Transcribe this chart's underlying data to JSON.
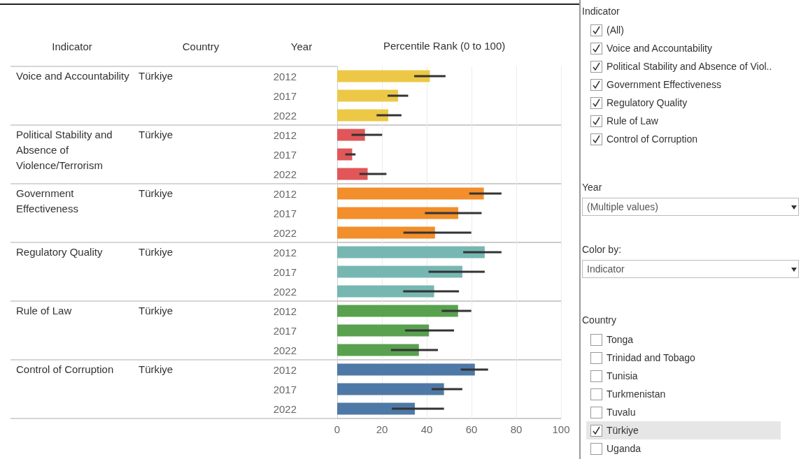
{
  "chart_data": [
    {
      "type": "bar",
      "orientation": "horizontal",
      "xlabel": "Percentile Rank (0 to 100)",
      "categories": [
        "2012",
        "2017",
        "2022",
        "2012",
        "2017",
        "2022",
        "2012",
        "2017",
        "2022",
        "2012",
        "2017",
        "2022",
        "2012",
        "2017",
        "2022",
        "2012",
        "2017",
        "2022"
      ],
      "values": [
        41.4,
        27.2,
        22.8,
        12.4,
        6.7,
        13.6,
        65.5,
        54.1,
        43.7,
        65.9,
        55.9,
        43.3,
        54,
        41,
        36.5,
        61.5,
        47.7,
        34.7
      ],
      "errors": [
        [
          34.4,
          48.4
        ],
        [
          22.5,
          31.7
        ],
        [
          17.6,
          28.7
        ],
        [
          6.4,
          20.1
        ],
        [
          3.6,
          8.2
        ],
        [
          9.9,
          22
        ],
        [
          59,
          73.4
        ],
        [
          39.2,
          64.5
        ],
        [
          29.6,
          59.9
        ],
        [
          56.3,
          73.4
        ],
        [
          40.8,
          65.9
        ],
        [
          29.5,
          54.4
        ],
        [
          46.7,
          59.9
        ],
        [
          30.3,
          52.2
        ],
        [
          24,
          45
        ],
        [
          55.2,
          67.4
        ],
        [
          42.2,
          55.9
        ],
        [
          24.4,
          47.7
        ]
      ],
      "colors": [
        "#ecc846",
        "#ecc846",
        "#ecc846",
        "#e15759",
        "#e15759",
        "#e15759",
        "#f28e2b",
        "#f28e2b",
        "#f28e2b",
        "#76b7b2",
        "#76b7b2",
        "#76b7b2",
        "#59a14f",
        "#59a14f",
        "#59a14f",
        "#4e79a7",
        "#4e79a7",
        "#4e79a7"
      ],
      "xlim": [
        0,
        100
      ],
      "xticks": [
        0,
        20,
        40,
        60,
        80,
        100
      ],
      "grid": true,
      "annotations": [
        "Indicator",
        "Country",
        "Year",
        "Voice and Accountability",
        "Political Stability and Absence of Violence/Terrorism",
        "Government Effectiveness",
        "Regulatory Quality",
        "Rule of Law",
        "Control of Corruption",
        "Türkiye",
        "Türkiye",
        "Türkiye",
        "Türkiye",
        "Türkiye",
        "Türkiye"
      ]
    },
    {
      "type": "other",
      "annotations": [
        "Indicator",
        "(All)",
        "Voice and Accountability",
        "Political Stability and Absence of Viol..",
        "Government Effectiveness",
        "Regulatory Quality",
        "Rule of Law",
        "Control of Corruption",
        "Year",
        "(Multiple values)",
        "Color by:",
        "Indicator",
        "Country",
        "Tonga",
        "Trinidad and Tobago",
        "Tunisia",
        "Turkmenistan",
        "Tuvalu",
        "Türkiye",
        "Uganda"
      ]
    }
  ]
}
